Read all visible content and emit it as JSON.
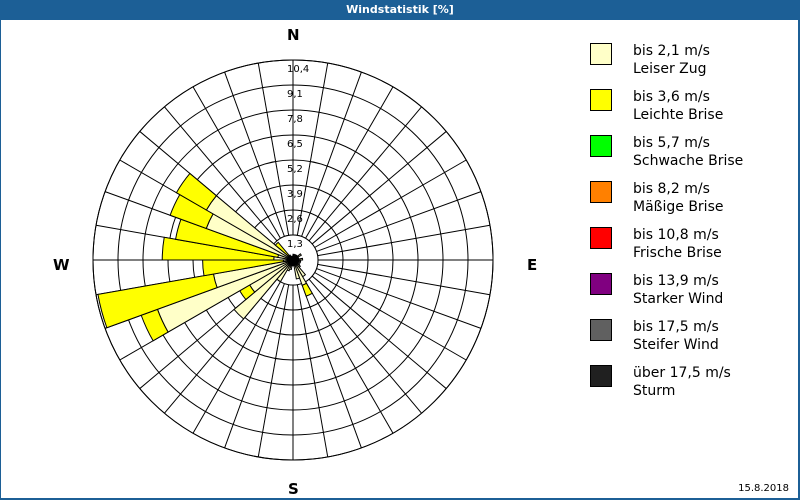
{
  "window": {
    "title": "Windstatistik [%]"
  },
  "compass": {
    "n": "N",
    "e": "E",
    "s": "S",
    "w": "W"
  },
  "footer": {
    "date": "15.8.2018"
  },
  "legend": [
    {
      "speed": "bis 2,1 m/s",
      "name": "Leiser Zug",
      "color": "#FFFFC8"
    },
    {
      "speed": "bis 3,6 m/s",
      "name": "Leichte Brise",
      "color": "#FFFF00"
    },
    {
      "speed": "bis 5,7 m/s",
      "name": "Schwache Brise",
      "color": "#00FF00"
    },
    {
      "speed": "bis 8,2 m/s",
      "name": "Mäßige Brise",
      "color": "#FF8000"
    },
    {
      "speed": "bis 10,8 m/s",
      "name": "Frische Brise",
      "color": "#FF0000"
    },
    {
      "speed": "bis 13,9 m/s",
      "name": "Starker Wind",
      "color": "#800080"
    },
    {
      "speed": "bis 17,5 m/s",
      "name": "Steifer Wind",
      "color": "#606060"
    },
    {
      "speed": "über 17,5 m/s",
      "name": "Sturm",
      "color": "#202020"
    }
  ],
  "chart_data": {
    "type": "wind-rose",
    "title": "Windstatistik [%]",
    "rings": [
      "1,3",
      "2,6",
      "3,9",
      "5,2",
      "6,5",
      "7,8",
      "9,1",
      "10,4"
    ],
    "rmax": 10.4,
    "sector_width_deg": 10,
    "series_names": [
      "bis 2,1 m/s",
      "bis 3,6 m/s"
    ],
    "sectors": [
      {
        "dir": 5,
        "cum": [
          0.3,
          0.3
        ]
      },
      {
        "dir": 15,
        "cum": [
          0.2,
          0.2
        ]
      },
      {
        "dir": 25,
        "cum": [
          0.3,
          0.3
        ]
      },
      {
        "dir": 35,
        "cum": [
          0.3,
          0.3
        ]
      },
      {
        "dir": 45,
        "cum": [
          0.3,
          0.3
        ]
      },
      {
        "dir": 55,
        "cum": [
          0.5,
          0.5
        ]
      },
      {
        "dir": 65,
        "cum": [
          0.3,
          0.3
        ]
      },
      {
        "dir": 75,
        "cum": [
          0.3,
          0.3
        ]
      },
      {
        "dir": 85,
        "cum": [
          0.5,
          0.5
        ]
      },
      {
        "dir": 95,
        "cum": [
          0.4,
          0.4
        ]
      },
      {
        "dir": 105,
        "cum": [
          0.4,
          0.4
        ]
      },
      {
        "dir": 115,
        "cum": [
          0.3,
          0.3
        ]
      },
      {
        "dir": 125,
        "cum": [
          0.4,
          0.4
        ]
      },
      {
        "dir": 135,
        "cum": [
          0.5,
          0.5
        ]
      },
      {
        "dir": 145,
        "cum": [
          1.0,
          1.0
        ]
      },
      {
        "dir": 155,
        "cum": [
          1.4,
          2.0
        ]
      },
      {
        "dir": 165,
        "cum": [
          1.0,
          1.0
        ]
      },
      {
        "dir": 175,
        "cum": [
          0.3,
          0.3
        ]
      },
      {
        "dir": 185,
        "cum": [
          0.3,
          0.3
        ]
      },
      {
        "dir": 195,
        "cum": [
          0.5,
          0.5
        ]
      },
      {
        "dir": 205,
        "cum": [
          0.6,
          0.6
        ]
      },
      {
        "dir": 215,
        "cum": [
          1.3,
          1.3
        ]
      },
      {
        "dir": 225,
        "cum": [
          4.0,
          4.0
        ]
      },
      {
        "dir": 235,
        "cum": [
          2.6,
          3.2
        ]
      },
      {
        "dir": 245,
        "cum": [
          7.5,
          8.4
        ]
      },
      {
        "dir": 255,
        "cum": [
          4.2,
          10.3
        ]
      },
      {
        "dir": 265,
        "cum": [
          0.5,
          4.7
        ]
      },
      {
        "dir": 275,
        "cum": [
          1.0,
          6.8
        ]
      },
      {
        "dir": 285,
        "cum": [
          0.8,
          6.2
        ]
      },
      {
        "dir": 295,
        "cum": [
          4.8,
          6.8
        ]
      },
      {
        "dir": 305,
        "cum": [
          5.2,
          7.0
        ]
      },
      {
        "dir": 315,
        "cum": [
          0.3,
          1.2
        ]
      },
      {
        "dir": 325,
        "cum": [
          0.3,
          0.3
        ]
      },
      {
        "dir": 335,
        "cum": [
          0.2,
          0.2
        ]
      },
      {
        "dir": 345,
        "cum": [
          0.2,
          0.2
        ]
      },
      {
        "dir": 355,
        "cum": [
          0.2,
          0.2
        ]
      }
    ]
  }
}
